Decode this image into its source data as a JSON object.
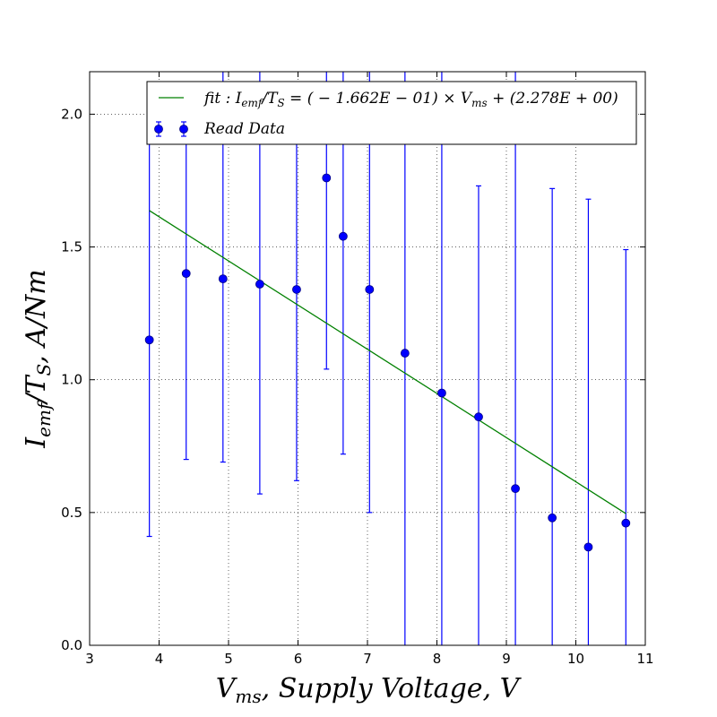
{
  "chart_data": {
    "type": "scatter",
    "xlabel": "V_ms, Supply Voltage, V",
    "ylabel": "I_emf/T_S, A/Nm",
    "xlim": [
      3,
      11
    ],
    "ylim": [
      0.0,
      2.16
    ],
    "x_ticks": [
      "3",
      "4",
      "5",
      "6",
      "7",
      "8",
      "9",
      "10",
      "11"
    ],
    "y_ticks": [
      "0.0",
      "0.5",
      "1.0",
      "1.5",
      "2.0"
    ],
    "grid": true,
    "legend_position": "top-right",
    "series": [
      {
        "name": "Read Data",
        "kind": "errorbar",
        "color": "#0000ff",
        "x": [
          3.86,
          4.39,
          4.92,
          5.45,
          5.98,
          6.41,
          6.65,
          7.03,
          7.54,
          8.07,
          8.6,
          9.13,
          9.66,
          10.18,
          10.72
        ],
        "y": [
          1.15,
          1.4,
          1.38,
          1.36,
          1.34,
          1.76,
          1.54,
          1.34,
          1.1,
          0.95,
          0.86,
          0.59,
          0.48,
          0.37,
          0.46
        ],
        "yerr_low": [
          0.41,
          0.7,
          0.69,
          0.57,
          0.62,
          1.04,
          0.72,
          0.5,
          0.0,
          0.0,
          0.0,
          0.0,
          0.0,
          0.0,
          0.0
        ],
        "yerr_high": [
          1.98,
          1.98,
          2.16,
          2.16,
          2.05,
          2.16,
          2.16,
          2.16,
          2.16,
          2.16,
          1.73,
          2.16,
          1.72,
          1.68,
          1.49
        ]
      },
      {
        "name": "fit: I_emf/T_S = (-1.662E-01) × V_ms + (2.278E+00)",
        "kind": "line",
        "color": "#008000",
        "x": [
          3.86,
          10.72
        ],
        "y": [
          1.637,
          0.496
        ]
      }
    ]
  }
}
